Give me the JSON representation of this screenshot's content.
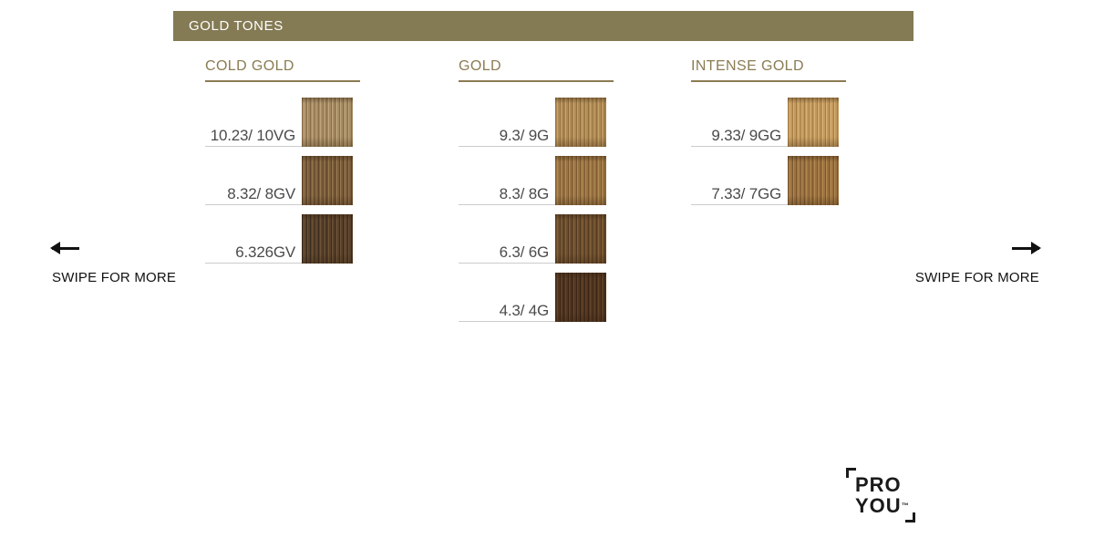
{
  "header": {
    "title": "GOLD TONES",
    "bg_color": "#847a54",
    "text_color": "#ffffff"
  },
  "accent_color": "#8a7c52",
  "label_underline_color": "#cccccc",
  "columns": [
    {
      "title": "COLD GOLD",
      "swatches": [
        {
          "label": "10.23/ 10VG",
          "color": "#a68c63",
          "color_light": "#bfa67d",
          "color_dark": "#8a6e4a"
        },
        {
          "label": "8.32/ 8GV",
          "color": "#7a5d3d",
          "color_light": "#95774f",
          "color_dark": "#5f4427"
        },
        {
          "label": "6.326GV",
          "color": "#57412c",
          "color_light": "#6d5236",
          "color_dark": "#3c2b1b"
        }
      ]
    },
    {
      "title": "GOLD",
      "swatches": [
        {
          "label": "9.3/ 9G",
          "color": "#b08b55",
          "color_light": "#c7a269",
          "color_dark": "#93713f"
        },
        {
          "label": "8.3/ 8G",
          "color": "#9a7443",
          "color_light": "#b38a52",
          "color_dark": "#7c5a30"
        },
        {
          "label": "6.3/ 6G",
          "color": "#6d4e2d",
          "color_light": "#84613a",
          "color_dark": "#523920"
        },
        {
          "label": "4.3/ 4G",
          "color": "#513621",
          "color_light": "#64442a",
          "color_dark": "#392414"
        }
      ]
    },
    {
      "title": "INTENSE GOLD",
      "swatches": [
        {
          "label": "9.33/ 9GG",
          "color": "#c29a5e",
          "color_light": "#d8b073",
          "color_dark": "#a67e45"
        },
        {
          "label": "7.33/ 7GG",
          "color": "#9b7240",
          "color_light": "#b2884f",
          "color_dark": "#7b5730"
        }
      ]
    }
  ],
  "swipe": {
    "left_label": "SWIPE FOR MORE",
    "right_label": "SWIPE FOR MORE",
    "left_icon": "arrow-left-icon",
    "right_icon": "arrow-right-icon"
  },
  "logo": {
    "line1": "PRO",
    "line2": "YOU",
    "trademark": "™"
  }
}
